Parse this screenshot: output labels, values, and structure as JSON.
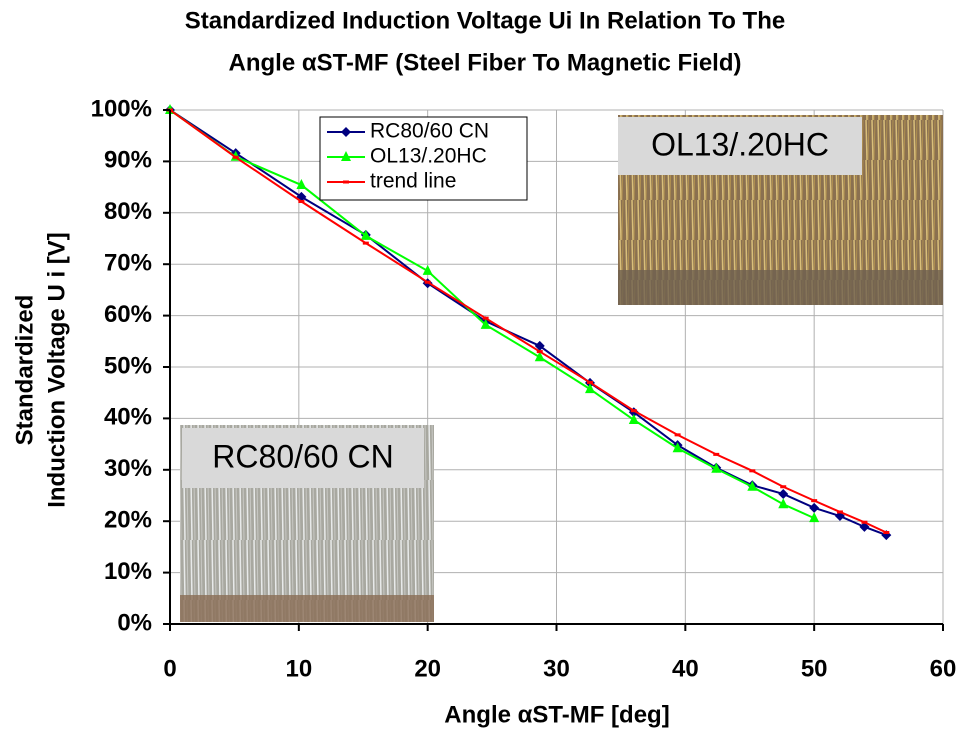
{
  "chart_data": {
    "type": "line",
    "title": [
      "Standardized Induction Voltage Ui In Relation To The",
      "Angle αST-MF (Steel Fiber To Magnetic Field)"
    ],
    "x_label": "Angle αST-MF [deg]",
    "y_label": [
      "Standardized",
      "Induction Voltage U i [V]"
    ],
    "annotations": [
      "OL13/.20HC",
      "RC80/60 CN"
    ],
    "xlim": [
      0,
      60
    ],
    "xticks": [
      0,
      10,
      20,
      30,
      40,
      50,
      60
    ],
    "ylim": [
      0,
      100
    ],
    "yticks": [
      {
        "value": 0,
        "label": "0%"
      },
      {
        "value": 10,
        "label": "10%"
      },
      {
        "value": 20,
        "label": "20%"
      },
      {
        "value": 30,
        "label": "30%"
      },
      {
        "value": 40,
        "label": "40%"
      },
      {
        "value": 50,
        "label": "50%"
      },
      {
        "value": 60,
        "label": "60%"
      },
      {
        "value": 70,
        "label": "70%"
      },
      {
        "value": 80,
        "label": "80%"
      },
      {
        "value": 90,
        "label": "90%"
      },
      {
        "value": 100,
        "label": "100%"
      }
    ],
    "grid": true,
    "legend": "top-left",
    "series": [
      {
        "name": "RC80/60 CN",
        "color": "#000080",
        "marker": "diamond",
        "x": [
          0,
          5.1,
          10.2,
          15.2,
          20.0,
          24.5,
          28.7,
          32.6,
          36.0,
          39.4,
          42.4,
          45.2,
          47.6,
          50.0,
          52.0,
          53.9,
          55.6
        ],
        "values": [
          100,
          91.6,
          83.1,
          75.7,
          66.3,
          58.9,
          54.1,
          46.9,
          41.2,
          34.8,
          30.4,
          27.0,
          25.3,
          22.6,
          21.0,
          18.9,
          17.3
        ]
      },
      {
        "name": "OL13/.20HC",
        "color": "#00ff00",
        "marker": "triangle",
        "x": [
          0,
          5.1,
          10.2,
          15.2,
          20.0,
          24.5,
          28.7,
          32.6,
          36.0,
          39.4,
          42.4,
          45.2,
          47.6,
          50.0
        ],
        "values": [
          100,
          90.9,
          85.4,
          75.5,
          68.7,
          58.2,
          51.9,
          45.7,
          39.7,
          34.2,
          30.2,
          26.7,
          23.3,
          20.6
        ]
      },
      {
        "name": "trend line",
        "color": "#ff0000",
        "marker": "dash",
        "x": [
          0,
          5.1,
          10.2,
          15.2,
          20.0,
          24.5,
          28.7,
          32.6,
          36.0,
          39.4,
          42.4,
          45.2,
          47.6,
          50.0,
          52.0,
          53.9,
          55.6
        ],
        "values": [
          100,
          90.8,
          82.2,
          74.1,
          66.5,
          59.5,
          53.0,
          47.0,
          41.5,
          36.8,
          33.0,
          29.8,
          26.7,
          24.0,
          21.8,
          19.8,
          17.8
        ]
      }
    ]
  }
}
